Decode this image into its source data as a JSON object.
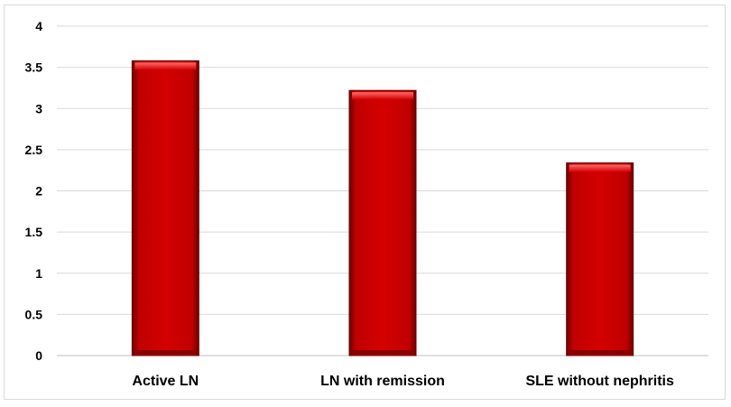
{
  "chart_data": {
    "type": "bar",
    "title": "",
    "xlabel": "",
    "ylabel": "",
    "categories": [
      "Active LN",
      "LN with remission",
      "SLE without nephritis"
    ],
    "values": [
      3.58,
      3.22,
      2.34
    ],
    "ylim": [
      0,
      4
    ],
    "yticks": [
      "0",
      "0.5",
      "1",
      "1.5",
      "2",
      "2.5",
      "3",
      "3.5",
      "4"
    ],
    "grid": true,
    "legend": "none",
    "bar_color": "#c00000",
    "bar_edge_color": "#6b0000",
    "bar_highlight_color": "#ff4d4d",
    "grid_color": "#d9d9d9"
  }
}
